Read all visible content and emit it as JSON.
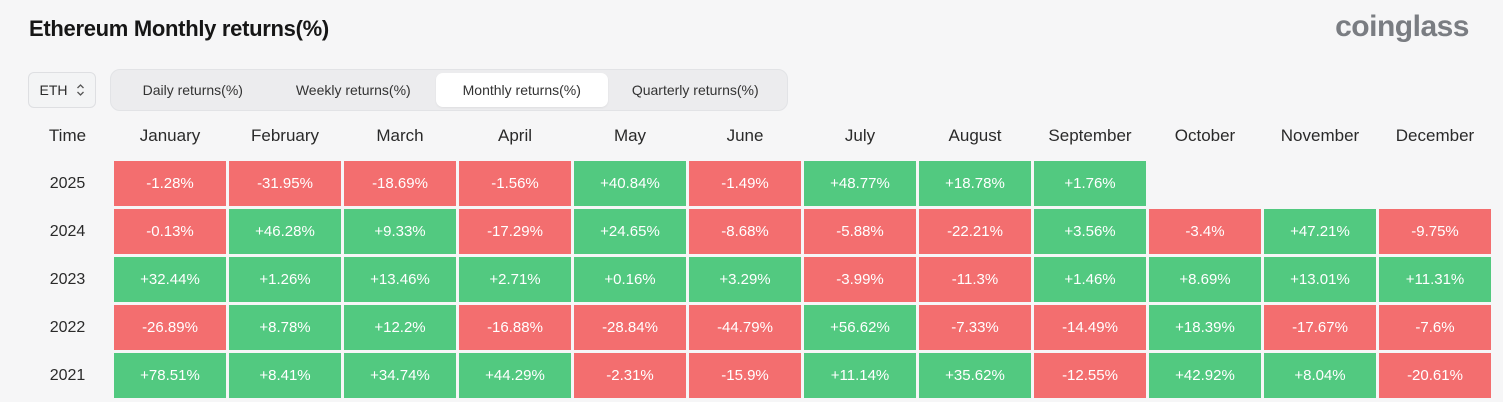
{
  "header": {
    "title": "Ethereum Monthly returns(%)",
    "brand": "coinglass"
  },
  "asset_select": {
    "value": "ETH"
  },
  "tabs": [
    {
      "label": "Daily returns(%)",
      "active": false
    },
    {
      "label": "Weekly returns(%)",
      "active": false
    },
    {
      "label": "Monthly returns(%)",
      "active": true
    },
    {
      "label": "Quarterly returns(%)",
      "active": false
    }
  ],
  "colors": {
    "positive": "#52c980",
    "negative": "#f36e6f"
  },
  "table": {
    "time_label": "Time",
    "months": [
      "January",
      "February",
      "March",
      "April",
      "May",
      "June",
      "July",
      "August",
      "September",
      "October",
      "November",
      "December"
    ],
    "rows": [
      {
        "year": "2025",
        "values": [
          "-1.28%",
          "-31.95%",
          "-18.69%",
          "-1.56%",
          "+40.84%",
          "-1.49%",
          "+48.77%",
          "+18.78%",
          "+1.76%",
          "",
          "",
          ""
        ]
      },
      {
        "year": "2024",
        "values": [
          "-0.13%",
          "+46.28%",
          "+9.33%",
          "-17.29%",
          "+24.65%",
          "-8.68%",
          "-5.88%",
          "-22.21%",
          "+3.56%",
          "-3.4%",
          "+47.21%",
          "-9.75%"
        ]
      },
      {
        "year": "2023",
        "values": [
          "+32.44%",
          "+1.26%",
          "+13.46%",
          "+2.71%",
          "+0.16%",
          "+3.29%",
          "-3.99%",
          "-11.3%",
          "+1.46%",
          "+8.69%",
          "+13.01%",
          "+11.31%"
        ]
      },
      {
        "year": "2022",
        "values": [
          "-26.89%",
          "+8.78%",
          "+12.2%",
          "-16.88%",
          "-28.84%",
          "-44.79%",
          "+56.62%",
          "-7.33%",
          "-14.49%",
          "+18.39%",
          "-17.67%",
          "-7.6%"
        ]
      },
      {
        "year": "2021",
        "values": [
          "+78.51%",
          "+8.41%",
          "+34.74%",
          "+44.29%",
          "-2.31%",
          "-15.9%",
          "+11.14%",
          "+35.62%",
          "-12.55%",
          "+42.92%",
          "+8.04%",
          "-20.61%"
        ]
      }
    ]
  }
}
